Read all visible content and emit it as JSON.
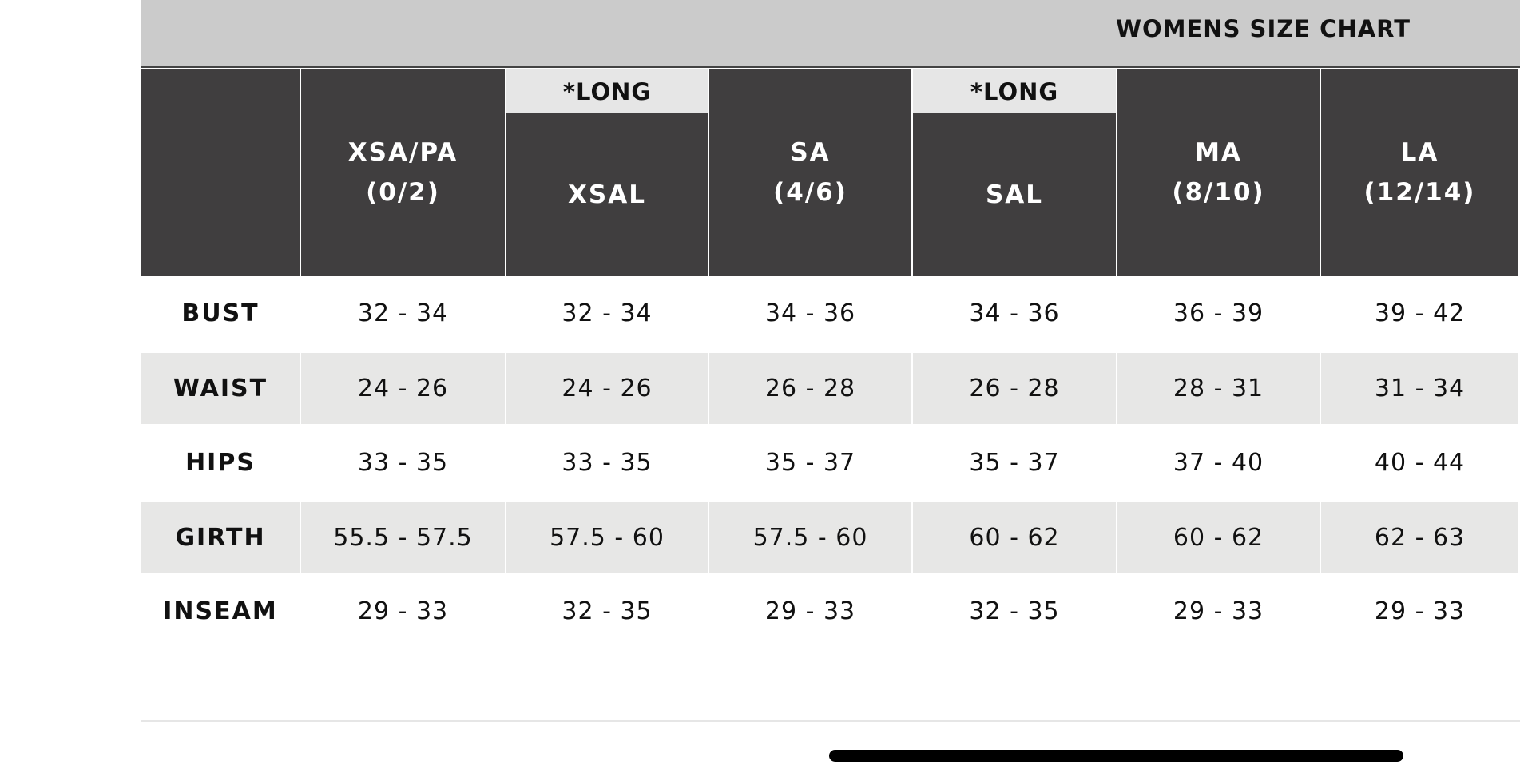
{
  "header": {
    "title": "WOMENS SIZE CHART"
  },
  "table": {
    "columns": [
      {
        "label": "XSA/PA",
        "sub": "(0/2)"
      },
      {
        "tag": "*LONG",
        "label": "XSAL"
      },
      {
        "label": "SA",
        "sub": "(4/6)"
      },
      {
        "tag": "*LONG",
        "label": "SAL"
      },
      {
        "label": "MA",
        "sub": "(8/10)"
      },
      {
        "label": "LA",
        "sub": "(12/14)"
      }
    ],
    "rows": [
      {
        "label": "BUST",
        "values": [
          "32 - 34",
          "32 - 34",
          "34 - 36",
          "34 - 36",
          "36 - 39",
          "39 - 42"
        ]
      },
      {
        "label": "WAIST",
        "values": [
          "24 - 26",
          "24 - 26",
          "26 - 28",
          "26 - 28",
          "28 - 31",
          "31 - 34"
        ]
      },
      {
        "label": "HIPS",
        "values": [
          "33 - 35",
          "33 - 35",
          "35 - 37",
          "35 - 37",
          "37 - 40",
          "40 - 44"
        ]
      },
      {
        "label": "GIRTH",
        "values": [
          "55.5 - 57.5",
          "57.5 - 60",
          "57.5 - 60",
          "60 - 62",
          "60 - 62",
          "62 - 63"
        ]
      },
      {
        "label": "INSEAM",
        "values": [
          "29 - 33",
          "32 - 35",
          "29 - 33",
          "32 - 35",
          "29 - 33",
          "29 - 33"
        ]
      }
    ]
  }
}
